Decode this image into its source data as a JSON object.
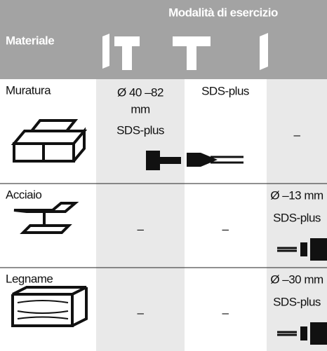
{
  "header": {
    "title": "Modalità di esercizio",
    "material": "Materiale"
  },
  "rows": [
    {
      "material": "Muratura",
      "cells": [
        [
          "Ø 40 –82",
          "mm",
          "SDS-plus"
        ],
        [
          "SDS-plus"
        ],
        [
          "–"
        ]
      ]
    },
    {
      "material": "Acciaio",
      "cells": [
        [
          "–"
        ],
        [
          "–"
        ],
        [
          "Ø  –13 mm",
          "SDS-plus"
        ]
      ]
    },
    {
      "material": "Legname",
      "cells": [
        [
          "–"
        ],
        [
          "–"
        ],
        [
          "Ø  –30 mm",
          "SDS-plus"
        ]
      ]
    }
  ]
}
